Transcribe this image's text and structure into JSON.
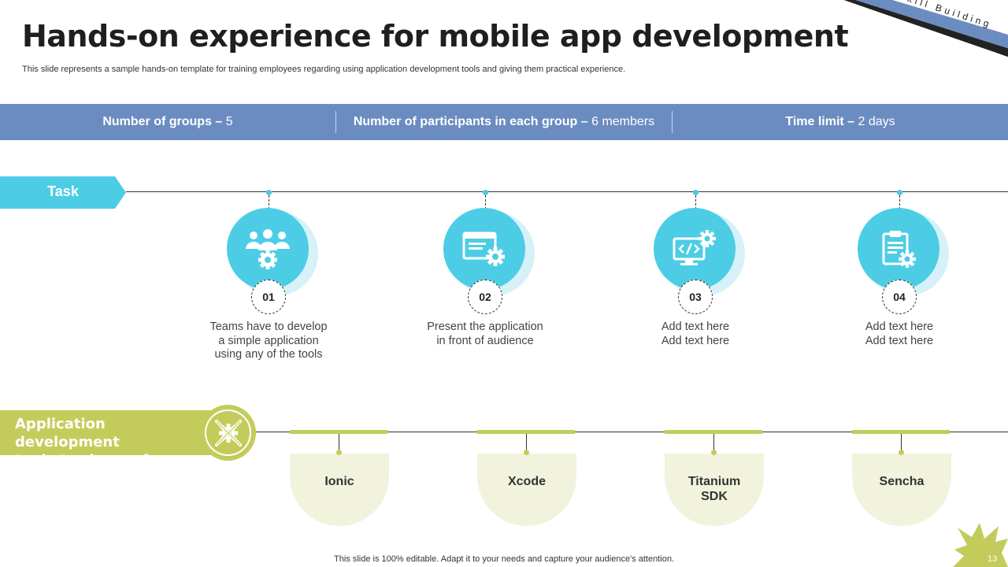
{
  "header": {
    "title": "Hands-on experience for mobile app development",
    "subtitle": "This slide represents a sample hands-on template for training employees regarding using application development tools and giving them practical experience.",
    "ribbon_text": "Skill Building"
  },
  "info_bar": [
    {
      "label": "Number of groups – ",
      "value": "5"
    },
    {
      "label": "Number of participants in each group – ",
      "value": "6 members"
    },
    {
      "label": "Time limit – ",
      "value": "2 days"
    }
  ],
  "task": {
    "label": "Task",
    "steps": [
      {
        "number": "01",
        "icon": "team-gear-icon",
        "lines": [
          "Teams have to develop",
          "a simple application",
          "using any of the tools"
        ]
      },
      {
        "number": "02",
        "icon": "browser-gear-icon",
        "lines": [
          "Present the application",
          "in front of audience"
        ]
      },
      {
        "number": "03",
        "icon": "code-monitor-icon",
        "lines": [
          "Add text here",
          "Add text here"
        ]
      },
      {
        "number": "04",
        "icon": "clipboard-gear-icon",
        "lines": [
          "Add text here",
          "Add text here"
        ]
      }
    ]
  },
  "tools": {
    "label_line1": "Application development",
    "label_line2": "tools to choose from",
    "items": [
      {
        "name_line1": "Ionic",
        "name_line2": ""
      },
      {
        "name_line1": "Xcode",
        "name_line2": ""
      },
      {
        "name_line1": "Titanium",
        "name_line2": "SDK"
      },
      {
        "name_line1": "Sencha",
        "name_line2": ""
      }
    ]
  },
  "footer": {
    "note": "This slide is 100% editable. Adapt it to your needs and capture your audience's attention.",
    "page_number": "13"
  },
  "colors": {
    "blue_bar": "#6b8cc0",
    "cyan": "#4ccde5",
    "olive": "#c3cc5a",
    "cream": "#f1f3dd"
  }
}
